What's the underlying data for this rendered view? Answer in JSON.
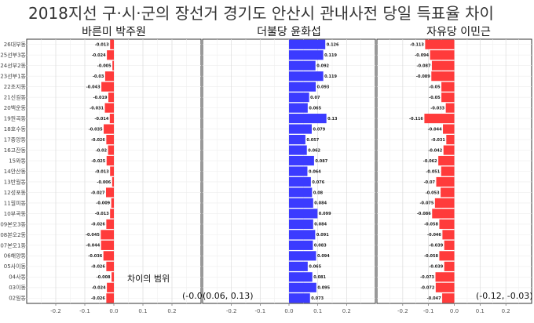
{
  "title": "2018지선 구·시·군의 장선거 경기도 안산시 관내사전 당일 득표율 차이",
  "chart_data": {
    "type": "bar",
    "orientation": "horizontal",
    "categories": [
      "26대부동",
      "25선부3동",
      "24선부2동",
      "23선부1동",
      "22초지동",
      "21신길동",
      "20백운동",
      "19원곡동",
      "18호수동",
      "17중앙동",
      "16고잔동",
      "15와동",
      "14안산동",
      "13반월동",
      "12성포동",
      "11월피동",
      "10부곡동",
      "09본오3동",
      "08본오2동",
      "07본오1동",
      "06해양동",
      "05사이동",
      "04사동",
      "03이동",
      "02일동"
    ],
    "xlim": [
      -0.3,
      0.3
    ],
    "xticks": [
      -0.2,
      -0.1,
      0.0,
      0.1,
      0.2
    ],
    "xtick_labels": [
      "-0.2",
      "-0.1",
      "0.0",
      "0.1",
      "0.2"
    ],
    "grid": true,
    "series": [
      {
        "name": "바른미 박주원",
        "color": "#ff3b3b",
        "values": [
          -0.013,
          -0.024,
          -0.005,
          -0.03,
          -0.043,
          -0.019,
          -0.031,
          -0.014,
          -0.035,
          -0.026,
          -0.02,
          -0.025,
          -0.013,
          -0.006,
          -0.027,
          -0.009,
          -0.013,
          -0.026,
          -0.045,
          -0.044,
          -0.036,
          -0.026,
          -0.008,
          -0.024,
          -0.026
        ],
        "note": "차이의 범위",
        "range_label": "(-0.0"
      },
      {
        "name": "더불당 윤화섭",
        "color": "#3b3bff",
        "values": [
          0.126,
          0.119,
          0.092,
          0.119,
          0.093,
          0.07,
          0.065,
          0.13,
          0.079,
          0.057,
          0.062,
          0.087,
          0.064,
          0.076,
          0.08,
          0.084,
          0.099,
          0.084,
          0.091,
          0.083,
          0.094,
          0.065,
          0.081,
          0.095,
          0.073
        ],
        "range_label": "(0.06, 0.13)"
      },
      {
        "name": "자유당 이민근",
        "color": "#ff3b3b",
        "values": [
          -0.113,
          -0.094,
          -0.087,
          -0.089,
          -0.05,
          -0.05,
          -0.033,
          -0.116,
          -0.044,
          -0.031,
          -0.042,
          -0.062,
          -0.051,
          -0.07,
          -0.053,
          -0.075,
          -0.086,
          -0.058,
          -0.046,
          -0.039,
          -0.058,
          -0.039,
          -0.073,
          -0.072,
          -0.047
        ],
        "range_label": "(-0.12, -0.03)"
      }
    ]
  }
}
